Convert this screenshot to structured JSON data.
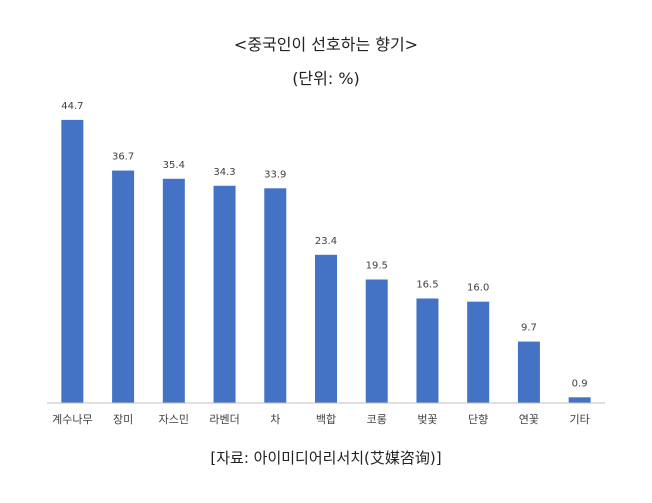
{
  "chart_data": {
    "type": "bar",
    "title": "<중국인이 선호하는 향기>",
    "subtitle": "(단위: %)",
    "categories": [
      "계수나무",
      "장미",
      "자스민",
      "라벤더",
      "차",
      "백합",
      "코롱",
      "벚꽃",
      "단향",
      "연꽃",
      "기타"
    ],
    "series": [
      {
        "values": [
          44.7,
          36.7,
          35.4,
          34.3,
          33.9,
          23.4,
          19.5,
          16.5,
          16.0,
          9.7,
          0.9
        ],
        "labels": [
          "44.7",
          "36.7",
          "35.4",
          "34.3",
          "33.9",
          "23.4",
          "19.5",
          "16.5",
          "16.0",
          "9.7",
          "0.9"
        ],
        "color": "#4472C4"
      }
    ],
    "ylim": [
      0,
      45
    ],
    "grid": false,
    "legend": "none",
    "source": "[자료: 아이미디어리서치(艾媒咨询)]"
  },
  "colors": {
    "bar": "#4472C4",
    "axis": "#BFBFBF",
    "text": "#222222",
    "label": "#404040"
  }
}
